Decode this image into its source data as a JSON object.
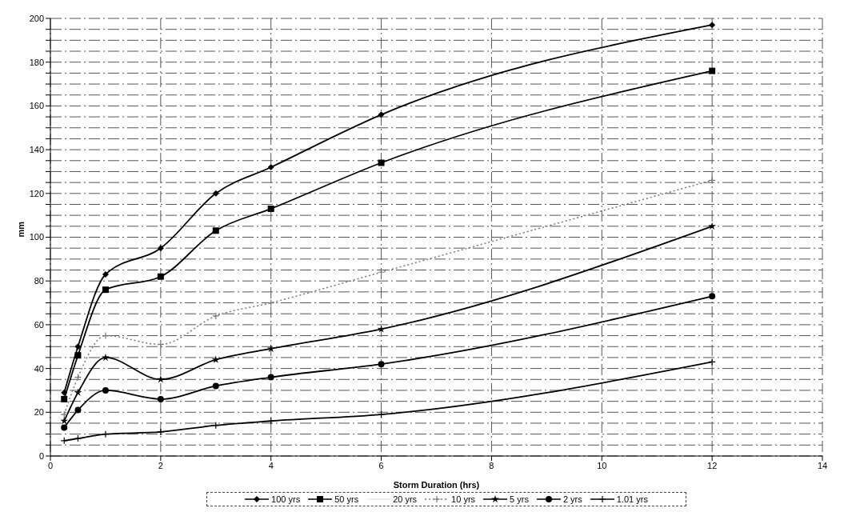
{
  "chart_data": {
    "type": "line",
    "xlabel": "Storm Duration (hrs)",
    "ylabel": "mm",
    "x": [
      0.25,
      0.5,
      1,
      2,
      3,
      4,
      6,
      12
    ],
    "series": [
      {
        "name": "100 yrs",
        "color": "#000000",
        "marker": "diamond",
        "line_style": "solid",
        "values": [
          29,
          50,
          83,
          95,
          120,
          132,
          156,
          197
        ]
      },
      {
        "name": "50 yrs",
        "color": "#000000",
        "marker": "square",
        "line_style": "solid",
        "values": [
          26,
          46,
          76,
          82,
          103,
          113,
          134,
          176
        ]
      },
      {
        "name": "20 yrs",
        "color": "#e8e8e8",
        "marker": "none",
        "line_style": "solid",
        "values": [
          null,
          null,
          null,
          null,
          null,
          null,
          null,
          null
        ]
      },
      {
        "name": "10 yrs",
        "color": "#777777",
        "marker": "cross",
        "line_style": "dotted",
        "values": [
          19,
          36,
          55,
          51,
          64,
          70,
          84,
          126
        ]
      },
      {
        "name": "5 yrs",
        "color": "#000000",
        "marker": "star",
        "line_style": "solid",
        "values": [
          16,
          29,
          45,
          35,
          44,
          49,
          58,
          105
        ]
      },
      {
        "name": "2 yrs",
        "color": "#000000",
        "marker": "circle",
        "line_style": "solid",
        "values": [
          13,
          21,
          30,
          26,
          32,
          36,
          42,
          73
        ]
      },
      {
        "name": "1.01 yrs",
        "color": "#000000",
        "marker": "cross",
        "line_style": "solid",
        "values": [
          7,
          8,
          10,
          11,
          14,
          16,
          19,
          43
        ]
      }
    ],
    "xlim": [
      0,
      14
    ],
    "xticks": [
      0,
      2,
      4,
      6,
      8,
      10,
      12,
      14
    ],
    "ylim": [
      0,
      200
    ],
    "yticks": [
      0,
      {
        "value": 5,
        "label": null
      },
      {
        "value": 10,
        "label": null
      },
      {
        "value": 15,
        "label": null
      },
      20,
      {
        "value": 25,
        "label": null
      },
      {
        "value": 30,
        "label": null
      },
      {
        "value": 35,
        "label": null
      },
      40,
      {
        "value": 45,
        "label": null
      },
      {
        "value": 50,
        "label": null
      },
      {
        "value": 55,
        "label": null
      },
      60,
      {
        "value": 65,
        "label": null
      },
      {
        "value": 70,
        "label": null
      },
      {
        "value": 75,
        "label": null
      },
      80,
      {
        "value": 85,
        "label": null
      },
      {
        "value": 90,
        "label": null
      },
      {
        "value": 95,
        "label": null
      },
      100,
      {
        "value": 105,
        "label": null
      },
      {
        "value": 110,
        "label": null
      },
      {
        "value": 115,
        "label": null
      },
      120,
      {
        "value": 125,
        "label": null
      },
      {
        "value": 130,
        "label": null
      },
      {
        "value": 135,
        "label": null
      },
      140,
      {
        "value": 145,
        "label": null
      },
      {
        "value": 150,
        "label": null
      },
      {
        "value": 155,
        "label": null
      },
      160,
      {
        "value": 165,
        "label": null
      },
      {
        "value": 170,
        "label": null
      },
      {
        "value": 175,
        "label": null
      },
      180,
      {
        "value": 185,
        "label": null
      },
      {
        "value": 190,
        "label": null
      },
      {
        "value": 195,
        "label": null
      },
      200
    ],
    "grid": true,
    "legend": "bottom"
  }
}
